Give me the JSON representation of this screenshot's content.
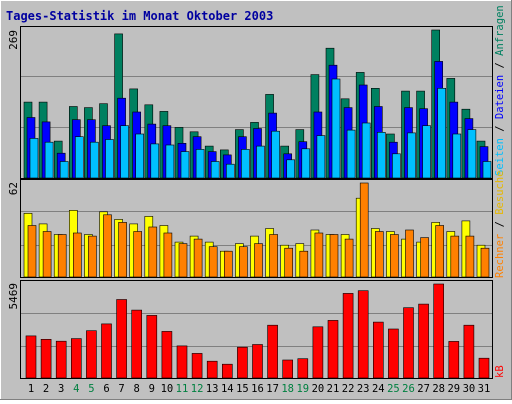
{
  "colors": {
    "background": "#c0c0c0",
    "title": "#0000a0",
    "anfragen": "#008060",
    "dateien": "#0000ff",
    "seiten": "#00c0ff",
    "besuche": "#ffff00",
    "rechner": "#ff8000",
    "kb": "#ff0000",
    "weekend_day": "#008040",
    "weekday_day": "#000000"
  },
  "chart_data": [
    {
      "type": "bar",
      "title": "Tages-Statistik im Monat Oktober 2003",
      "ymax_label": "269",
      "ylim": [
        0,
        269
      ],
      "legend_placement": "right",
      "legend": [
        "Anfragen",
        "Dateien",
        "Seiten"
      ],
      "categories": [
        "1",
        "2",
        "3",
        "4",
        "5",
        "6",
        "7",
        "8",
        "9",
        "10",
        "11",
        "12",
        "13",
        "14",
        "15",
        "16",
        "17",
        "18",
        "19",
        "20",
        "21",
        "22",
        "23",
        "24",
        "25",
        "26",
        "27",
        "28",
        "29",
        "30",
        "31"
      ],
      "series": [
        {
          "name": "Anfragen",
          "values": [
            138,
            138,
            67,
            130,
            128,
            135,
            262,
            162,
            133,
            121,
            92,
            84,
            58,
            51,
            88,
            101,
            152,
            58,
            88,
            188,
            236,
            144,
            192,
            163,
            80,
            158,
            158,
            269,
            181,
            125,
            67
          ]
        },
        {
          "name": "Dateien",
          "values": [
            110,
            102,
            45,
            106,
            106,
            95,
            145,
            120,
            98,
            95,
            63,
            75,
            48,
            42,
            75,
            90,
            118,
            44,
            66,
            120,
            205,
            128,
            169,
            130,
            65,
            128,
            126,
            212,
            138,
            108,
            57
          ]
        },
        {
          "name": "Seiten",
          "values": [
            72,
            65,
            30,
            75,
            65,
            70,
            95,
            80,
            62,
            60,
            48,
            52,
            30,
            25,
            52,
            58,
            85,
            33,
            53,
            77,
            180,
            87,
            100,
            83,
            44,
            82,
            95,
            163,
            80,
            88,
            30
          ]
        }
      ]
    },
    {
      "type": "bar",
      "ymax_label": "62",
      "ylim": [
        0,
        62
      ],
      "legend_placement": "right",
      "legend": [
        "Besuche",
        "Rechner"
      ],
      "categories": [
        "1",
        "2",
        "3",
        "4",
        "5",
        "6",
        "7",
        "8",
        "9",
        "10",
        "11",
        "12",
        "13",
        "14",
        "15",
        "16",
        "17",
        "18",
        "19",
        "20",
        "21",
        "22",
        "23",
        "24",
        "25",
        "26",
        "27",
        "28",
        "29",
        "30",
        "31"
      ],
      "series": [
        {
          "name": "Besuche",
          "values": [
            42,
            35,
            28,
            44,
            28,
            43,
            38,
            35,
            40,
            34,
            23,
            27,
            23,
            17,
            22,
            27,
            32,
            21,
            22,
            31,
            28,
            28,
            52,
            32,
            30,
            25,
            23,
            36,
            30,
            37,
            21
          ]
        },
        {
          "name": "Rechner",
          "values": [
            34,
            30,
            28,
            29,
            27,
            41,
            36,
            30,
            33,
            29,
            22,
            25,
            20,
            17,
            20,
            22,
            28,
            19,
            17,
            29,
            28,
            25,
            62,
            30,
            28,
            31,
            26,
            34,
            27,
            27,
            19
          ]
        }
      ]
    },
    {
      "type": "bar",
      "ymax_label": "5469",
      "ylim": [
        0,
        5469
      ],
      "legend_placement": "right",
      "legend": [
        "kB"
      ],
      "categories": [
        "1",
        "2",
        "3",
        "4",
        "5",
        "6",
        "7",
        "8",
        "9",
        "10",
        "11",
        "12",
        "13",
        "14",
        "15",
        "16",
        "17",
        "18",
        "19",
        "20",
        "21",
        "22",
        "23",
        "24",
        "25",
        "26",
        "27",
        "28",
        "29",
        "30",
        "31"
      ],
      "series": [
        {
          "name": "kB",
          "values": [
            2450,
            2250,
            2140,
            2290,
            2750,
            3150,
            4570,
            3950,
            3640,
            2710,
            1870,
            1430,
            980,
            800,
            1790,
            1950,
            3070,
            1050,
            1120,
            2980,
            3350,
            4920,
            5080,
            3250,
            2850,
            4090,
            4300,
            5469,
            2130,
            3070,
            1150
          ]
        }
      ]
    }
  ]
}
